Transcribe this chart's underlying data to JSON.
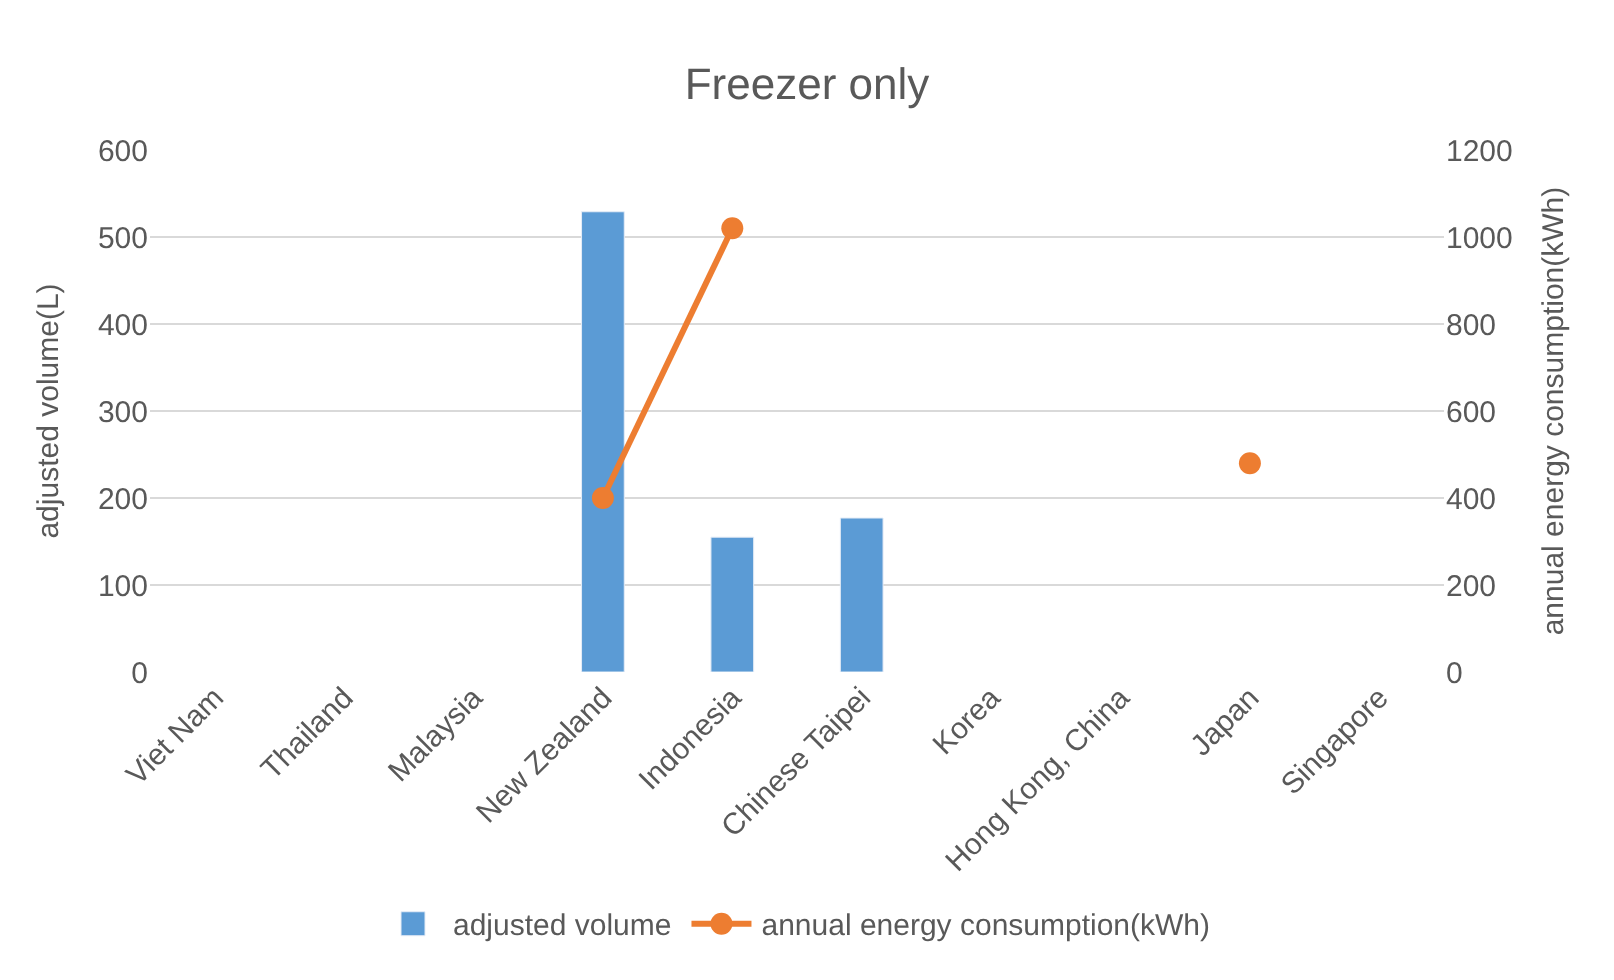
{
  "chart_data": {
    "type": "bar",
    "title": "Freezer only",
    "ylabel": "adjusted volume(L)",
    "y2label": "annual energy consumption(kWh)",
    "categories": [
      "Viet Nam",
      "Thailand",
      "Malaysia",
      "New Zealand",
      "Indonesia",
      "Chinese Taipei",
      "Korea",
      "Hong Kong, China",
      "Japan",
      "Singapore"
    ],
    "series": [
      {
        "name": "adjusted volume",
        "color": "#5b9bd5",
        "values": [
          null,
          null,
          null,
          529,
          155,
          177,
          null,
          null,
          null,
          null
        ]
      },
      {
        "name": "annual energy consumption(kWh)",
        "type": "line",
        "axis": "y2",
        "color": "#ed7d31",
        "marker": "circle",
        "values": [
          null,
          null,
          null,
          400,
          1020,
          null,
          null,
          null,
          480,
          null
        ]
      }
    ],
    "ylim": [
      0,
      600
    ],
    "yticks": [
      0,
      100,
      200,
      300,
      400,
      500,
      600
    ],
    "y2lim": [
      0,
      1200
    ],
    "y2ticks": [
      0,
      200,
      400,
      600,
      800,
      1000,
      1200
    ],
    "grid": "y",
    "legend": "bottom"
  }
}
